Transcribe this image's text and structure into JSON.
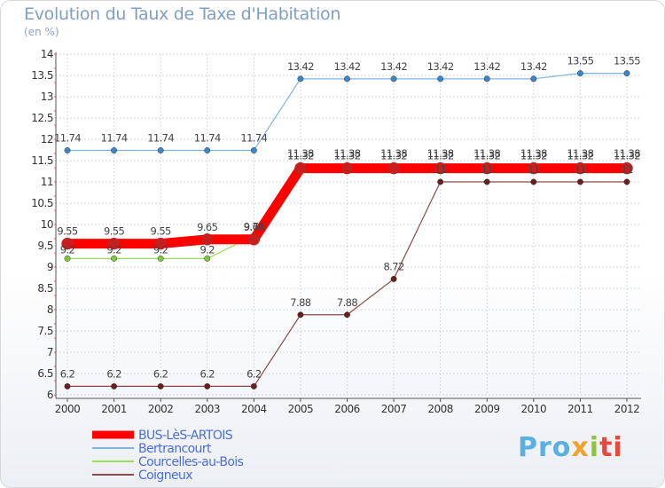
{
  "chart_data": {
    "type": "line",
    "title": "Evolution du Taux de Taxe d'Habitation",
    "subtitle": "(en %)",
    "categories": [
      "2000",
      "2001",
      "2002",
      "2003",
      "2004",
      "2005",
      "2006",
      "2007",
      "2008",
      "2009",
      "2010",
      "2011",
      "2012"
    ],
    "ylim": [
      6,
      14
    ],
    "yticks": [
      "6",
      "6.5",
      "7",
      "7.5",
      "8",
      "8.5",
      "9",
      "9.5",
      "10",
      "10.5",
      "11",
      "11.5",
      "12",
      "12.5",
      "13",
      "13.5",
      "14"
    ],
    "series": [
      {
        "name": "BUS-LèS-ARTOIS",
        "color": "#ff0000",
        "marker": "#c61f1f",
        "values": [
          9.55,
          9.55,
          9.55,
          9.65,
          9.65,
          11.32,
          11.32,
          11.32,
          11.32,
          11.32,
          11.32,
          11.32,
          11.32
        ],
        "labels": [
          "9.55",
          "9.55",
          "9.55",
          "9.65",
          "9.65",
          "11.32",
          "11.32",
          "11.32",
          "11.32",
          "11.32",
          "11.32",
          "11.32",
          "11.32"
        ]
      },
      {
        "name": "Bertrancourt",
        "color": "#7fb4e0",
        "marker": "#3a86c8",
        "values": [
          11.74,
          11.74,
          11.74,
          11.74,
          11.74,
          13.42,
          13.42,
          13.42,
          13.42,
          13.42,
          13.42,
          13.55,
          13.55
        ],
        "labels": [
          "11.74",
          "11.74",
          "11.74",
          "11.74",
          "11.74",
          "13.42",
          "13.42",
          "13.42",
          "13.42",
          "13.42",
          "13.42",
          "13.55",
          "13.55"
        ]
      },
      {
        "name": "Courcelles-au-Bois",
        "color": "#9bdd5a",
        "marker": "#7ccb3a",
        "values": [
          9.2,
          9.2,
          9.2,
          9.2,
          9.74,
          11.38,
          11.38,
          11.38,
          11.38,
          11.38,
          11.38,
          11.38,
          11.38
        ],
        "labels": [
          "9.2",
          "9.2",
          "9.2",
          "9.2",
          "9.74",
          "11.38",
          "11.38",
          "11.38",
          "11.38",
          "11.38",
          "11.38",
          "11.38",
          "11.38"
        ]
      },
      {
        "name": "Coigneux",
        "color": "#8a4a4a",
        "marker": "#6a1e1e",
        "values": [
          6.2,
          6.2,
          6.2,
          6.2,
          6.2,
          7.88,
          7.88,
          8.72,
          11,
          11,
          11,
          11,
          11
        ],
        "labels": [
          "6.2",
          "6.2",
          "6.2",
          "6.2",
          "6.2",
          "7.88",
          "7.88",
          "8.72",
          "11",
          "11",
          "11",
          "11",
          "11"
        ]
      }
    ]
  },
  "legend": [
    {
      "label": "BUS-LèS-ARTOIS",
      "text_color": "#4a6fd8"
    },
    {
      "label": "Bertrancourt",
      "text_color": "#4a6fd8"
    },
    {
      "label": "Courcelles-au-Bois",
      "text_color": "#4a6fd8"
    },
    {
      "label": "Coigneux",
      "text_color": "#4a6fd8"
    }
  ],
  "logo": {
    "p1": "Pro",
    "p2": "x",
    "p3": "i",
    "p4": "ti"
  }
}
